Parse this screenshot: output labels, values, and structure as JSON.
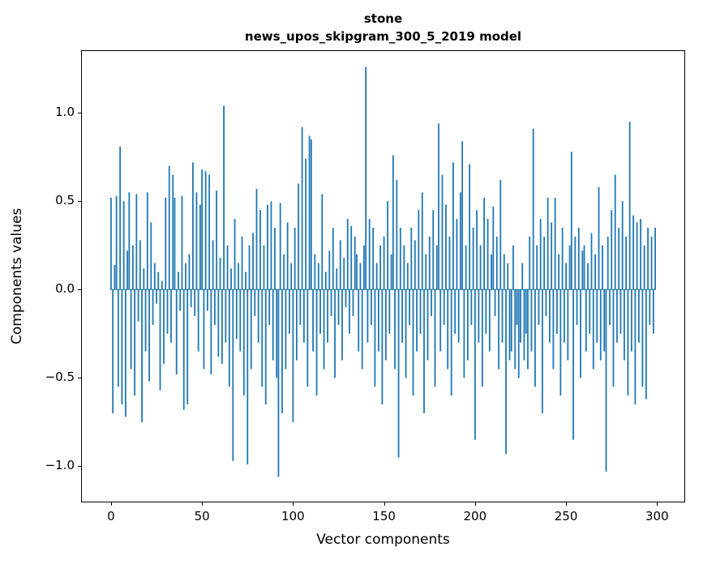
{
  "chart_data": {
    "type": "bar",
    "title_line1": "stone",
    "title_line2": "news_upos_skipgram_300_5_2019 model",
    "xlabel": "Vector components",
    "ylabel": "Components values",
    "x_ticks": [
      0,
      50,
      100,
      150,
      200,
      250,
      300
    ],
    "y_ticks": [
      -1.0,
      -0.5,
      0.0,
      0.5,
      1.0
    ],
    "xlim": [
      -16,
      315
    ],
    "ylim": [
      -1.2,
      1.35
    ],
    "bar_color": "#1f77b4",
    "x_start": 0,
    "grid": false,
    "legend": false,
    "values": [
      0.52,
      -0.7,
      0.14,
      0.53,
      -0.55,
      0.81,
      -0.65,
      0.5,
      -0.72,
      0.22,
      0.55,
      -0.45,
      0.25,
      -0.6,
      0.54,
      -0.18,
      0.28,
      -0.75,
      0.12,
      -0.35,
      0.55,
      -0.52,
      0.38,
      -0.2,
      0.15,
      -0.08,
      0.1,
      -0.57,
      0.05,
      -0.42,
      0.52,
      -0.25,
      0.7,
      -0.3,
      0.65,
      0.52,
      -0.48,
      0.1,
      -0.12,
      0.53,
      -0.68,
      0.15,
      -0.65,
      0.2,
      -0.1,
      0.72,
      -0.15,
      0.55,
      -0.35,
      0.48,
      0.68,
      -0.45,
      0.67,
      -0.12,
      0.65,
      -0.48,
      0.28,
      -0.2,
      0.56,
      -0.38,
      0.18,
      -0.42,
      1.04,
      -0.3,
      0.25,
      -0.55,
      0.12,
      -0.97,
      0.4,
      -0.28,
      0.15,
      -0.35,
      0.3,
      -0.6,
      0.1,
      -0.99,
      0.25,
      -0.45,
      0.32,
      -0.15,
      0.57,
      -0.3,
      0.45,
      -0.55,
      0.25,
      -0.65,
      0.48,
      -0.2,
      0.5,
      -0.4,
      0.35,
      -0.5,
      -1.06,
      0.49,
      -0.7,
      0.2,
      -0.45,
      0.38,
      -0.25,
      0.15,
      -0.75,
      0.35,
      -0.4,
      0.6,
      -0.2,
      0.92,
      -0.3,
      0.74,
      -0.55,
      0.87,
      0.85,
      -0.35,
      0.2,
      -0.6,
      0.15,
      -0.25,
      0.54,
      -0.45,
      0.1,
      -0.3,
      0.22,
      -0.15,
      0.35,
      -0.5,
      0.12,
      -0.2,
      0.28,
      -0.4,
      0.18,
      -0.1,
      0.4,
      -0.25,
      0.36,
      -0.15,
      0.3,
      0.2,
      -0.35,
      0.15,
      -0.45,
      0.25,
      1.26,
      -0.3,
      0.4,
      -0.2,
      0.35,
      -0.55,
      0.15,
      -0.35,
      0.25,
      -0.65,
      0.3,
      -0.4,
      0.5,
      -0.25,
      0.2,
      0.76,
      -0.45,
      0.62,
      -0.95,
      0.35,
      -0.3,
      0.25,
      -0.5,
      0.15,
      -0.2,
      0.35,
      -0.6,
      0.28,
      -0.35,
      0.45,
      -0.25,
      0.55,
      -0.7,
      0.2,
      -0.4,
      0.3,
      -0.15,
      0.45,
      -0.55,
      0.25,
      0.94,
      -0.35,
      0.65,
      -0.2,
      0.48,
      -0.45,
      0.3,
      -0.6,
      0.72,
      -0.25,
      0.4,
      -0.3,
      0.55,
      0.84,
      -0.5,
      0.25,
      -0.4,
      0.71,
      -0.2,
      0.35,
      -0.85,
      0.45,
      -0.3,
      0.25,
      -0.55,
      0.52,
      -0.25,
      0.4,
      -0.35,
      0.2,
      0.47,
      -0.15,
      0.3,
      -0.45,
      0.62,
      -0.3,
      0.2,
      -0.93,
      0.15,
      -0.4,
      -0.35,
      0.25,
      -0.45,
      -0.2,
      -0.5,
      -0.3,
      0.15,
      -0.4,
      -0.25,
      -0.45,
      0.3,
      -0.35,
      0.91,
      -0.55,
      0.25,
      -0.2,
      0.4,
      -0.7,
      0.3,
      -0.15,
      0.52,
      -0.3,
      0.38,
      -0.45,
      0.52,
      -0.25,
      0.2,
      -0.6,
      0.35,
      -0.3,
      0.15,
      -0.4,
      0.25,
      0.78,
      -0.85,
      0.3,
      -0.2,
      0.35,
      -0.5,
      0.22,
      0.25,
      -0.35,
      0.15,
      -0.25,
      0.32,
      -0.45,
      0.2,
      -0.3,
      0.58,
      -0.4,
      0.25,
      -0.35,
      -1.03,
      0.3,
      -0.2,
      0.45,
      -0.55,
      0.65,
      -0.3,
      0.35,
      -0.25,
      0.5,
      -0.4,
      0.3,
      -0.6,
      0.95,
      -0.35,
      0.42,
      -0.65,
      0.38,
      -0.3,
      0.4,
      -0.55,
      0.25,
      -0.62,
      0.35,
      -0.2,
      0.3,
      -0.25,
      0.35
    ]
  }
}
